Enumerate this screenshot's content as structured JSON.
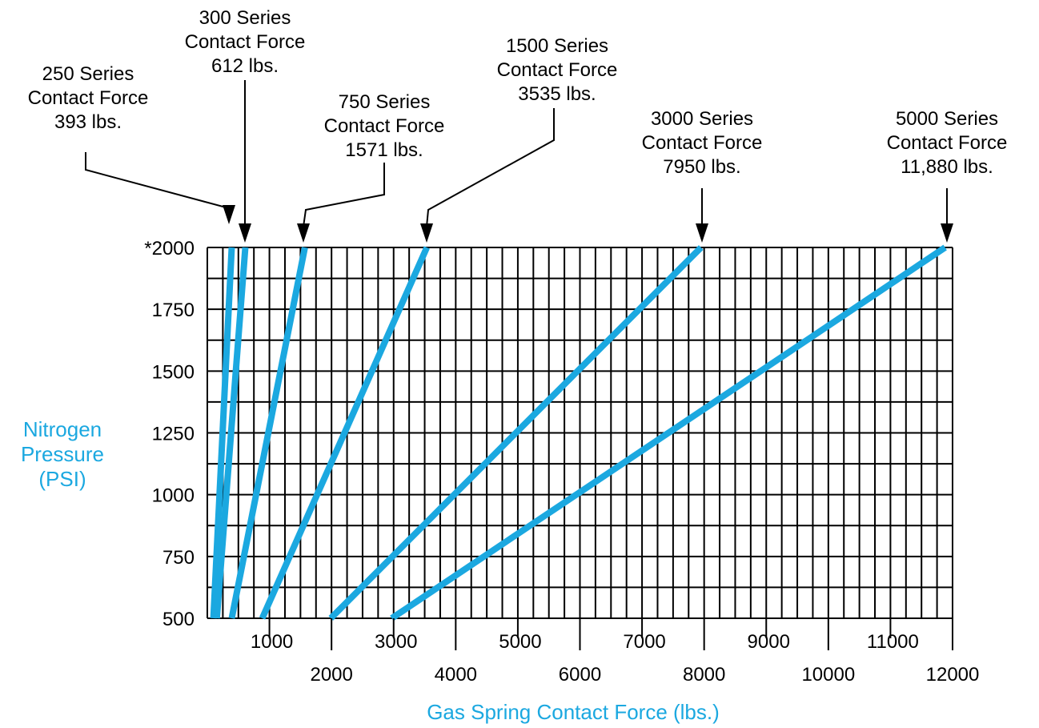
{
  "chart_data": {
    "type": "line",
    "title": "",
    "xlabel": "Gas Spring Contact Force (lbs.)",
    "ylabel": [
      "Nitrogen",
      "Pressure",
      "(PSI)"
    ],
    "xlim": [
      0,
      12000
    ],
    "ylim": [
      500,
      2000
    ],
    "x_minor_step": 250,
    "y_minor_step": 125,
    "grid": true,
    "colors": {
      "series": "#1ba8e0",
      "axis_title": "#1ba8e0",
      "grid": "#000000",
      "text": "#000000"
    },
    "y_ticks": [
      {
        "value": 2000,
        "label": "*2000"
      },
      {
        "value": 1750,
        "label": "1750"
      },
      {
        "value": 1500,
        "label": "1500"
      },
      {
        "value": 1250,
        "label": "1250"
      },
      {
        "value": 1000,
        "label": "1000"
      },
      {
        "value": 750,
        "label": "750"
      },
      {
        "value": 500,
        "label": "500"
      }
    ],
    "x_ticks_upper": [
      {
        "value": 1000,
        "label": "1000"
      },
      {
        "value": 3000,
        "label": "3000"
      },
      {
        "value": 5000,
        "label": "5000"
      },
      {
        "value": 7000,
        "label": "7000"
      },
      {
        "value": 9000,
        "label": "9000"
      },
      {
        "value": 11000,
        "label": "11000"
      }
    ],
    "x_ticks_lower": [
      {
        "value": 2000,
        "label": "2000"
      },
      {
        "value": 4000,
        "label": "4000"
      },
      {
        "value": 6000,
        "label": "6000"
      },
      {
        "value": 8000,
        "label": "8000"
      },
      {
        "value": 10000,
        "label": "10000"
      },
      {
        "value": 12000,
        "label": "12000"
      }
    ],
    "series": [
      {
        "name": "250 Series",
        "points": [
          [
            98,
            500
          ],
          [
            393,
            2000
          ]
        ],
        "annotation": [
          "250 Series",
          "Contact Force",
          "393 lbs."
        ]
      },
      {
        "name": "300 Series",
        "points": [
          [
            153,
            500
          ],
          [
            612,
            2000
          ]
        ],
        "annotation": [
          "300 Series",
          "Contact Force",
          "612 lbs."
        ]
      },
      {
        "name": "750 Series",
        "points": [
          [
            393,
            500
          ],
          [
            1571,
            2000
          ]
        ],
        "annotation": [
          "750 Series",
          "Contact Force",
          "1571 lbs."
        ]
      },
      {
        "name": "1500 Series",
        "points": [
          [
            884,
            500
          ],
          [
            3535,
            2000
          ]
        ],
        "annotation": [
          "1500 Series",
          "Contact Force",
          "3535 lbs."
        ]
      },
      {
        "name": "3000 Series",
        "points": [
          [
            1988,
            500
          ],
          [
            7950,
            2000
          ]
        ],
        "annotation": [
          "3000 Series",
          "Contact Force",
          "7950 lbs."
        ]
      },
      {
        "name": "5000 Series",
        "points": [
          [
            2970,
            500
          ],
          [
            11880,
            2000
          ]
        ],
        "annotation": [
          "5000 Series",
          "Contact Force",
          "11,880 lbs."
        ]
      }
    ]
  }
}
